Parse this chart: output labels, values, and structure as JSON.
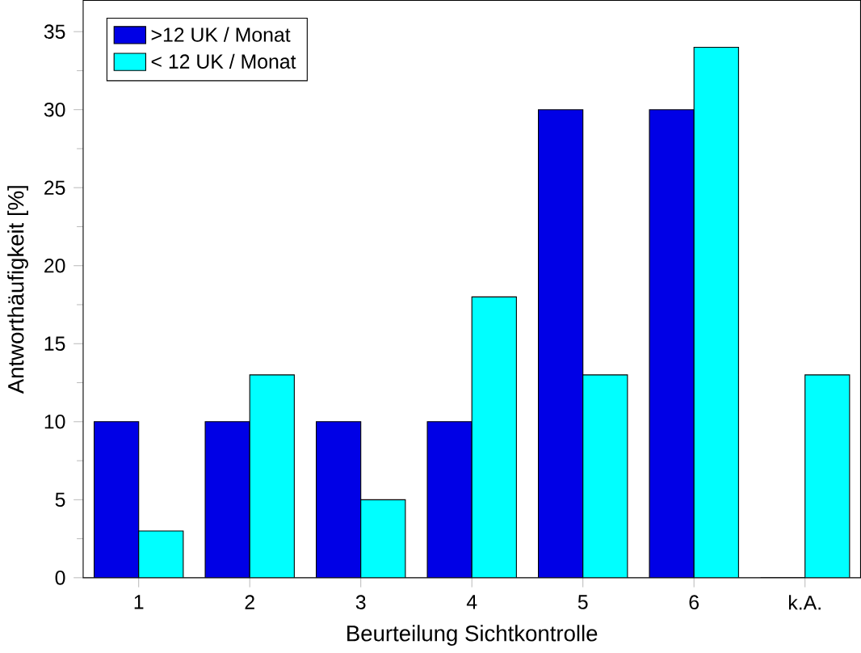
{
  "chart_data": {
    "type": "bar",
    "xlabel": "Beurteilung Sichtkontrolle",
    "ylabel": "Antworthäufigkeit [%]",
    "categories": [
      "1",
      "2",
      "3",
      "4",
      "5",
      "6",
      "k.A."
    ],
    "series": [
      {
        "name": ">12 UK / Monat",
        "color": "#0000e6",
        "values": [
          10,
          10,
          10,
          10,
          30,
          30,
          0
        ]
      },
      {
        "name": "< 12 UK / Monat",
        "color": "#00ffff",
        "values": [
          3,
          13,
          5,
          18,
          13,
          34,
          13
        ]
      }
    ],
    "ylim": [
      0,
      37
    ],
    "yticks": [
      0,
      5,
      10,
      15,
      20,
      25,
      30,
      35
    ],
    "legend": "top left"
  }
}
